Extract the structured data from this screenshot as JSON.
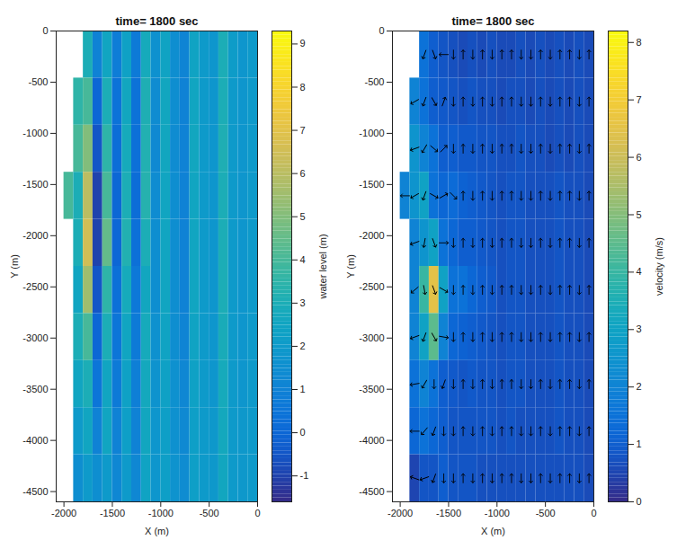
{
  "chart_data": [
    {
      "type": "heatmap",
      "title": "time= 1800 sec",
      "x_label": "X (m)",
      "y_label": "Y (m)",
      "xlim": [
        -2080,
        0
      ],
      "xticks": [
        -2000,
        -1500,
        -1000,
        -500,
        0
      ],
      "ylim": [
        -4600,
        0
      ],
      "yticks": [
        -4500,
        -4000,
        -3500,
        -3000,
        -2500,
        -2000,
        -1500,
        -1000,
        -500,
        0
      ],
      "x_edges": [
        -2000,
        -1900,
        -1800,
        -1700,
        -1600,
        -1500,
        -1400,
        -1300,
        -1200,
        -1100,
        -1000,
        -900,
        -800,
        -700,
        -600,
        -500,
        -400,
        -300,
        -200,
        -100,
        0
      ],
      "y_edges": [
        0,
        -460,
        -920,
        -1380,
        -1840,
        -2300,
        -2760,
        -3220,
        -3680,
        -4140,
        -4600
      ],
      "values": [
        [
          null,
          null,
          3,
          1,
          2.5,
          0.8,
          2.3,
          0.7,
          2.8,
          1.6,
          2.4,
          1.5,
          1.1,
          2.4,
          2,
          1.8,
          3,
          2.1,
          1.8,
          2
        ],
        [
          null,
          3.5,
          4,
          0,
          3,
          0.4,
          2.6,
          0.4,
          3.1,
          1.4,
          2.6,
          1.5,
          1,
          2.5,
          2,
          1.8,
          3,
          2,
          1.8,
          2
        ],
        [
          null,
          4,
          5,
          -0.5,
          3.5,
          0.2,
          2.8,
          0.3,
          3.2,
          1.3,
          2.6,
          1.4,
          1,
          2.6,
          2,
          1.8,
          3.1,
          2,
          1.8,
          2
        ],
        [
          4,
          3,
          6,
          -1,
          4,
          0,
          3,
          0.2,
          3.3,
          1.4,
          2.5,
          1.5,
          1,
          2.5,
          2,
          1.8,
          3,
          2,
          1.8,
          2
        ],
        [
          null,
          3,
          6.5,
          -1,
          4.5,
          0,
          3.2,
          0.3,
          3,
          1.5,
          2.5,
          1.5,
          1,
          2.5,
          2,
          1.8,
          3,
          2,
          1.8,
          2
        ],
        [
          null,
          2.5,
          5.5,
          -0.5,
          3.5,
          0.3,
          2.8,
          0.6,
          2.6,
          1.5,
          2.5,
          1.5,
          1,
          2.5,
          2,
          1.8,
          3,
          2,
          1.8,
          2
        ],
        [
          null,
          3,
          4,
          0,
          3,
          0.5,
          2.5,
          0.7,
          2.8,
          1.6,
          2.4,
          1.5,
          1.1,
          2.4,
          2,
          1.8,
          2.9,
          2,
          1.8,
          2
        ],
        [
          null,
          2.5,
          3,
          0.5,
          2.5,
          0.7,
          2.3,
          0.9,
          2.7,
          1.7,
          2.3,
          1.6,
          1.2,
          2.3,
          2,
          1.8,
          2.8,
          2,
          1.8,
          2
        ],
        [
          null,
          2,
          2.5,
          1,
          2.5,
          1,
          2.2,
          1,
          2.6,
          1.8,
          2.2,
          1.6,
          1.3,
          2.2,
          2,
          1.9,
          2.7,
          2,
          1.9,
          2
        ],
        [
          null,
          1.5,
          2,
          1.5,
          2,
          1.2,
          2,
          1.2,
          2.4,
          1.8,
          2.2,
          1.7,
          1.4,
          2.2,
          2,
          1.9,
          2.6,
          2,
          1.9,
          2
        ]
      ],
      "colorbar": {
        "label": "water level (m)",
        "lim": [
          -1.6,
          9.3
        ],
        "ticks": [
          -1,
          0,
          1,
          2,
          3,
          4,
          5,
          6,
          7,
          8,
          9
        ]
      }
    },
    {
      "type": "heatmap",
      "title": "time= 1800 sec",
      "x_label": "X (m)",
      "y_label": "Y (m)",
      "xlim": [
        -2080,
        0
      ],
      "xticks": [
        -2000,
        -1500,
        -1000,
        -500,
        0
      ],
      "ylim": [
        -4600,
        0
      ],
      "yticks": [
        -4500,
        -4000,
        -3500,
        -3000,
        -2500,
        -2000,
        -1500,
        -1000,
        -500,
        0
      ],
      "x_edges": [
        -2000,
        -1900,
        -1800,
        -1700,
        -1600,
        -1500,
        -1400,
        -1300,
        -1200,
        -1100,
        -1000,
        -900,
        -800,
        -700,
        -600,
        -500,
        -400,
        -300,
        -200,
        -100,
        0
      ],
      "y_edges": [
        0,
        -460,
        -920,
        -1380,
        -1840,
        -2300,
        -2760,
        -3220,
        -3680,
        -4140,
        -4600
      ],
      "values": [
        [
          null,
          null,
          1.5,
          1,
          0.8,
          0.7,
          0.6,
          0.7,
          0.6,
          0.7,
          0.6,
          0.6,
          0.7,
          0.6,
          0.7,
          0.6,
          0.7,
          0.6,
          0.7,
          0.6
        ],
        [
          null,
          2,
          1.5,
          1,
          0.9,
          0.8,
          0.7,
          0.8,
          0.7,
          0.7,
          0.6,
          0.7,
          0.7,
          0.6,
          0.7,
          0.6,
          0.7,
          0.6,
          0.7,
          0.6
        ],
        [
          null,
          2.5,
          2,
          1.5,
          1,
          1,
          0.9,
          0.9,
          0.8,
          0.8,
          0.7,
          0.7,
          0.8,
          0.7,
          0.7,
          0.6,
          0.7,
          0.6,
          0.7,
          0.6
        ],
        [
          2,
          2.5,
          3,
          1.5,
          1.2,
          1.3,
          1.1,
          1,
          0.9,
          0.8,
          0.7,
          0.8,
          0.8,
          0.7,
          0.7,
          0.7,
          0.8,
          0.7,
          0.7,
          0.6
        ],
        [
          null,
          2,
          2.5,
          3,
          1.5,
          1.2,
          1,
          1,
          0.9,
          0.8,
          0.7,
          0.8,
          0.8,
          0.7,
          0.7,
          0.7,
          0.8,
          0.7,
          0.7,
          0.6
        ],
        [
          null,
          2,
          4,
          6.5,
          3,
          1.5,
          1.5,
          1.2,
          1,
          0.9,
          0.7,
          0.8,
          0.8,
          0.7,
          0.7,
          0.7,
          0.8,
          0.7,
          0.7,
          0.6
        ],
        [
          null,
          2,
          3,
          4.5,
          2,
          1.2,
          1.1,
          1,
          0.9,
          0.8,
          0.7,
          0.8,
          0.8,
          0.7,
          0.7,
          0.7,
          0.8,
          0.7,
          0.7,
          0.6
        ],
        [
          null,
          1.5,
          2,
          1.5,
          1,
          0.9,
          0.8,
          0.9,
          0.8,
          0.8,
          0.7,
          0.8,
          0.8,
          0.7,
          0.7,
          0.7,
          0.8,
          0.7,
          0.7,
          0.6
        ],
        [
          null,
          1.2,
          1.5,
          1.2,
          1,
          0.8,
          0.8,
          0.8,
          0.8,
          0.8,
          0.7,
          0.8,
          0.7,
          0.7,
          0.7,
          0.7,
          0.8,
          0.7,
          0.7,
          0.6
        ],
        [
          null,
          0.5,
          0.8,
          0.8,
          1,
          0.8,
          0.8,
          0.8,
          0.7,
          0.7,
          0.7,
          0.7,
          0.7,
          0.7,
          0.7,
          0.7,
          0.7,
          0.7,
          0.7,
          0.6
        ]
      ],
      "arrow_angles": [
        [
          null,
          null,
          200,
          160,
          270,
          180,
          0,
          180,
          0,
          180,
          0,
          0,
          180,
          180,
          0,
          180,
          0,
          0,
          180,
          0
        ],
        [
          null,
          240,
          200,
          150,
          20,
          180,
          0,
          180,
          0,
          180,
          0,
          0,
          180,
          180,
          0,
          180,
          0,
          0,
          180,
          0
        ],
        [
          null,
          250,
          210,
          130,
          45,
          180,
          0,
          180,
          0,
          180,
          0,
          0,
          180,
          180,
          0,
          180,
          0,
          0,
          180,
          0
        ],
        [
          270,
          240,
          200,
          120,
          60,
          135,
          0,
          180,
          0,
          180,
          0,
          0,
          180,
          180,
          0,
          180,
          0,
          0,
          180,
          0
        ],
        [
          null,
          250,
          190,
          160,
          90,
          180,
          0,
          180,
          0,
          180,
          0,
          0,
          180,
          180,
          0,
          180,
          0,
          0,
          180,
          0
        ],
        [
          null,
          230,
          170,
          160,
          120,
          180,
          0,
          180,
          0,
          180,
          0,
          0,
          180,
          180,
          0,
          180,
          0,
          0,
          180,
          0
        ],
        [
          null,
          250,
          200,
          150,
          100,
          180,
          0,
          180,
          0,
          180,
          0,
          0,
          180,
          180,
          0,
          180,
          0,
          0,
          180,
          0
        ],
        [
          null,
          260,
          210,
          180,
          200,
          180,
          0,
          180,
          0,
          180,
          0,
          0,
          180,
          180,
          0,
          180,
          0,
          0,
          180,
          0
        ],
        [
          null,
          270,
          220,
          200,
          180,
          180,
          0,
          180,
          0,
          180,
          0,
          0,
          180,
          180,
          0,
          180,
          0,
          0,
          180,
          0
        ],
        [
          null,
          290,
          250,
          200,
          180,
          180,
          0,
          180,
          0,
          180,
          0,
          0,
          180,
          180,
          0,
          180,
          0,
          0,
          180,
          0
        ]
      ],
      "colorbar": {
        "label": "velocity (m/s)",
        "lim": [
          0,
          8.2
        ],
        "ticks": [
          0,
          1,
          2,
          3,
          4,
          5,
          6,
          7,
          8
        ]
      }
    }
  ]
}
